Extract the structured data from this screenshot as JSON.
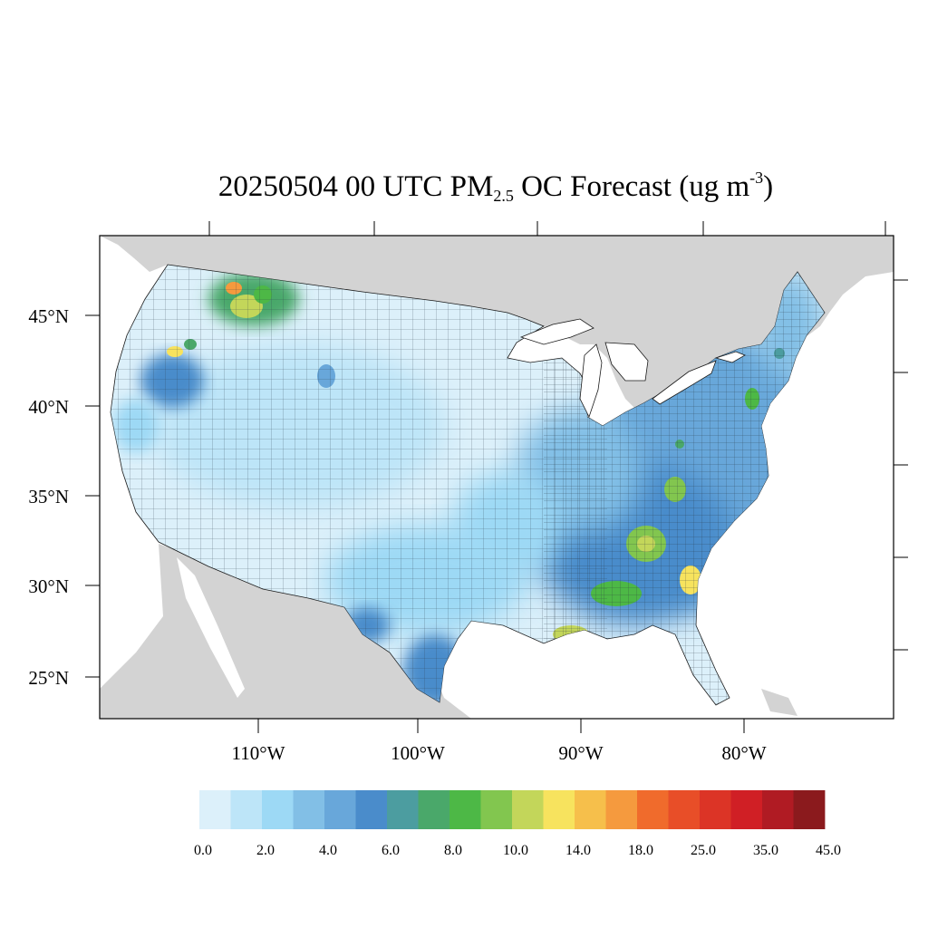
{
  "title": {
    "prefix": "20250504 00 UTC PM",
    "subscript": "2.5",
    "middle": " OC Forecast (ug m",
    "superscript": "-3",
    "suffix": ")"
  },
  "latitude_labels": [
    "45°N",
    "40°N",
    "35°N",
    "30°N",
    "25°N"
  ],
  "longitude_labels": [
    "110°W",
    "100°W",
    "90°W",
    "80°W"
  ],
  "colorbar": {
    "colors": [
      "#dcf0fa",
      "#bde5f8",
      "#9dd9f5",
      "#82bfe6",
      "#68a7da",
      "#4a8ccb",
      "#4c9da0",
      "#4aa86a",
      "#4db846",
      "#82c64f",
      "#c3d65a",
      "#f7e35e",
      "#f6bf4b",
      "#f59a3e",
      "#f06b2c",
      "#e84e28",
      "#dc3426",
      "#d01f25",
      "#b01b23",
      "#8b1a1d"
    ],
    "labels": [
      "0.0",
      "2.0",
      "4.0",
      "6.0",
      "8.0",
      "10.0",
      "14.0",
      "18.0",
      "25.0",
      "35.0",
      "45.0"
    ]
  },
  "colors": {
    "land_outside": "#d3d3d3",
    "water": "#ffffff",
    "lowest_concentration": "#dcf0fa"
  }
}
